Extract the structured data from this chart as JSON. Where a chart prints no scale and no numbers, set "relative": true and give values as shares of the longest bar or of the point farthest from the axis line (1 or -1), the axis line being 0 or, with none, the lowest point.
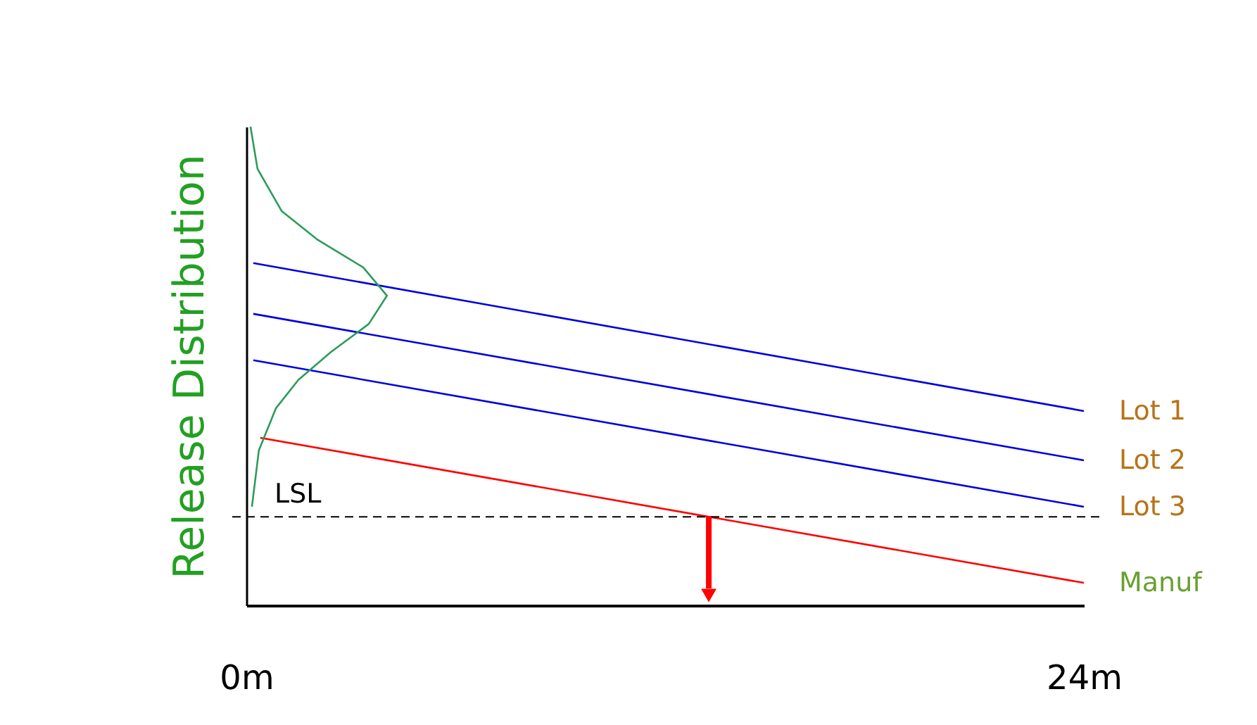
{
  "chart_data": {
    "type": "line",
    "relative": true,
    "ylabel": "Release Distribution",
    "xlim": [
      0,
      24
    ],
    "xticks": [
      {
        "value": 0,
        "label": "0m"
      },
      {
        "value": 24,
        "label": "24m"
      }
    ],
    "grid": false,
    "legend": false,
    "marker": "none",
    "series": [
      {
        "name": "Lot 1",
        "color": "#0000dd",
        "x": [
          0.2,
          24
        ],
        "values": [
          0.715,
          0.406
        ]
      },
      {
        "name": "Lot 2",
        "color": "#0000dd",
        "x": [
          0.2,
          24
        ],
        "values": [
          0.609,
          0.303
        ]
      },
      {
        "name": "Lot 3",
        "color": "#0000dd",
        "x": [
          0.2,
          24
        ],
        "values": [
          0.512,
          0.206
        ]
      },
      {
        "name": "Manuf",
        "color": "#ff0000",
        "x": [
          0.4,
          24
        ],
        "values": [
          0.35,
          0.047
        ]
      },
      {
        "color": "#2e9b5a",
        "x": [
          0.12,
          0.32,
          1.01,
          2.02,
          3.35,
          4.03,
          3.51,
          2.42,
          1.49,
          0.85,
          0.36,
          0.16
        ],
        "values": [
          1.0,
          0.912,
          0.824,
          0.765,
          0.706,
          0.647,
          0.588,
          0.529,
          0.471,
          0.412,
          0.324,
          0.206
        ]
      }
    ],
    "ref_lines": [
      {
        "axis": "y",
        "value": 0.185,
        "label": "LSL",
        "color": "#000000",
        "line_style": "dashed"
      }
    ]
  }
}
